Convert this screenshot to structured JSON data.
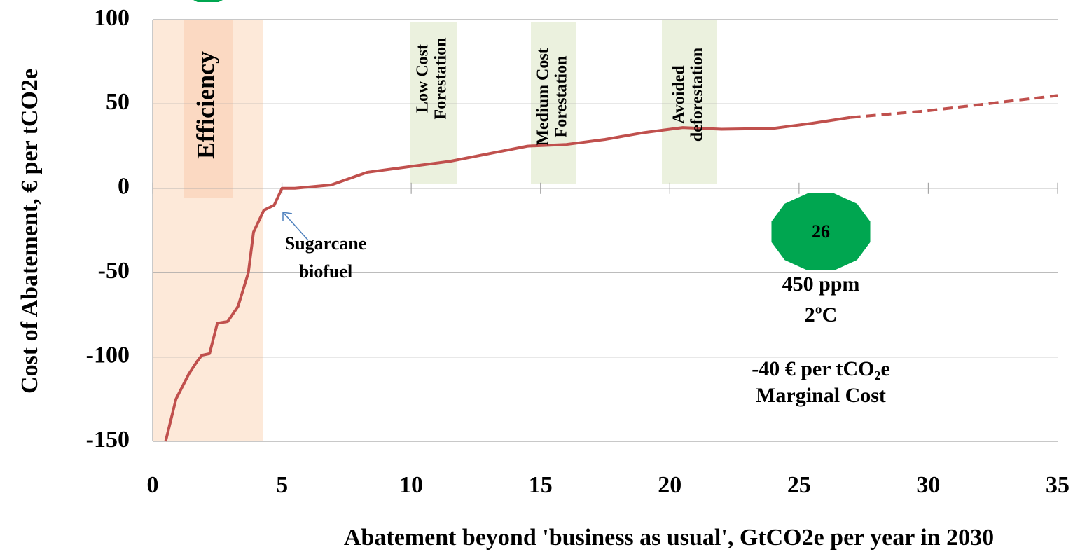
{
  "chart_data": {
    "type": "line",
    "title": null,
    "xlabel": "Abatement beyond 'business as usual', GtCO2e per year in 2030",
    "ylabel": "Cost of Abatement, € per tCO2e",
    "xlim": [
      0,
      35
    ],
    "xticks": [
      0,
      5,
      10,
      15,
      20,
      25,
      30,
      35
    ],
    "ylim": [
      -150,
      100
    ],
    "yticks": [
      -150,
      -100,
      -50,
      0,
      50,
      100
    ],
    "grid": true,
    "series": [
      {
        "color": "#c0504d",
        "dashed": false,
        "x": [
          0.5,
          0.9,
          1.4,
          1.7,
          1.9,
          2.2,
          2.5,
          2.9,
          3.3,
          3.7,
          3.9,
          4.3,
          4.7,
          5.0,
          5.5,
          6.9,
          8.3,
          10,
          11.5,
          13.5,
          14.5,
          16,
          17.5,
          19,
          20.5,
          22,
          24,
          25.5,
          27
        ],
        "values": [
          -150,
          -125,
          -110,
          -103,
          -99,
          -98,
          -80,
          -79,
          -70,
          -50,
          -26,
          -13,
          -10,
          0,
          0,
          2,
          9.5,
          13,
          16,
          22,
          25,
          26,
          29,
          33,
          36,
          35,
          35.5,
          38.5,
          42
        ]
      },
      {
        "color": "#c0504d",
        "dashed": true,
        "x": [
          27,
          30,
          35
        ],
        "values": [
          42,
          46,
          55
        ]
      }
    ],
    "annotations": [
      {
        "lines": [
          "Efficiency"
        ]
      },
      {
        "lines": [
          "Low Cost",
          "Forestation"
        ]
      },
      {
        "lines": [
          "Medium Cost",
          "Forestation"
        ]
      },
      {
        "lines": [
          "Avoided",
          "deforestation"
        ]
      },
      {
        "lines": [
          "Sugarcane",
          "biofuel"
        ]
      },
      {
        "lines": [
          "26"
        ]
      },
      {
        "lines": [
          "450 ppm",
          "2ºC"
        ]
      },
      {
        "lines": [
          "-40 € per tCO₂e",
          "Marginal Cost"
        ]
      }
    ]
  }
}
